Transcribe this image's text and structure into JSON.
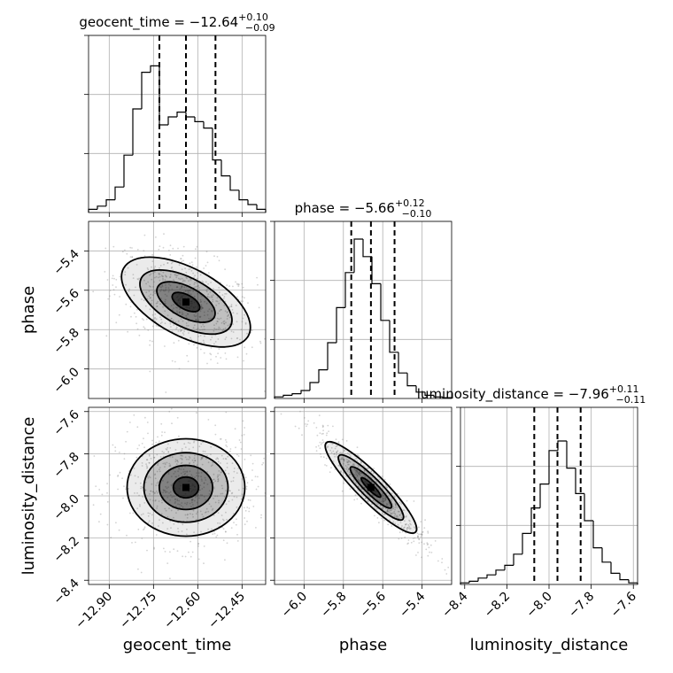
{
  "chart_data": {
    "type": "corner",
    "parameters": [
      "geocent_time",
      "phase",
      "luminosity_distance"
    ],
    "titles": [
      {
        "name": "geocent_time",
        "value": "−12.64",
        "plus": "+0.10",
        "minus": "−0.09"
      },
      {
        "name": "phase",
        "value": "−5.66",
        "plus": "+0.12",
        "minus": "−0.10"
      },
      {
        "name": "luminosity_distance",
        "value": "−7.96",
        "plus": "+0.11",
        "minus": "−0.11"
      }
    ],
    "ranges": [
      [
        -12.97,
        -12.37
      ],
      [
        -6.15,
        -5.25
      ],
      [
        -8.42,
        -7.58
      ]
    ],
    "ticks": [
      [
        -12.9,
        -12.75,
        -12.6,
        -12.45
      ],
      [
        -6.0,
        -5.8,
        -5.6,
        -5.4
      ],
      [
        -8.4,
        -8.2,
        -8.0,
        -7.8,
        -7.6
      ]
    ],
    "tick_labels": [
      [
        "−12.90",
        "−12.75",
        "−12.60",
        "−12.45"
      ],
      [
        "−6.0",
        "−5.8",
        "−5.6",
        "−5.4"
      ],
      [
        "−8.4",
        "−8.2",
        "−8.0",
        "−7.8",
        "−7.6"
      ]
    ],
    "quantiles": [
      [
        -12.73,
        -12.64,
        -12.54
      ],
      [
        -5.76,
        -5.66,
        -5.54
      ],
      [
        -8.07,
        -7.96,
        -7.85
      ]
    ],
    "histograms": [
      [
        0.02,
        0.04,
        0.08,
        0.16,
        0.36,
        0.65,
        0.88,
        0.92,
        0.55,
        0.6,
        0.63,
        0.6,
        0.57,
        0.53,
        0.33,
        0.23,
        0.14,
        0.08,
        0.05,
        0.02
      ],
      [
        0.01,
        0.02,
        0.03,
        0.05,
        0.1,
        0.18,
        0.35,
        0.57,
        0.79,
        1.0,
        0.89,
        0.72,
        0.49,
        0.29,
        0.16,
        0.08,
        0.04,
        0.02,
        0.01,
        0.005
      ],
      [
        0.01,
        0.02,
        0.04,
        0.06,
        0.09,
        0.12,
        0.19,
        0.32,
        0.48,
        0.63,
        0.84,
        0.9,
        0.73,
        0.57,
        0.4,
        0.23,
        0.14,
        0.07,
        0.03,
        0.01
      ]
    ],
    "correlations": {
      "phase|geocent_time": -0.45,
      "luminosity_distance|geocent_time": 0.0,
      "luminosity_distance|phase": -0.93
    },
    "grid": true
  }
}
